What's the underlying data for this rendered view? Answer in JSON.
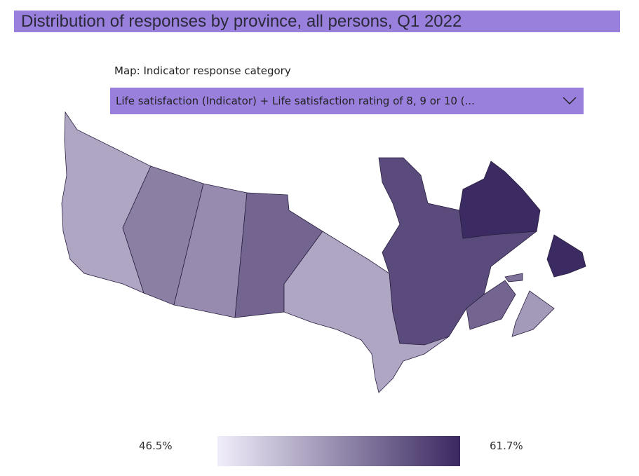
{
  "header": {
    "title": "Distribution of responses by province, all persons, Q1 2022"
  },
  "filter": {
    "label": "Map: Indicator response category",
    "selected": "Life satisfaction (Indicator) + Life satisfaction rating of 8, 9 or 10 (..."
  },
  "legend": {
    "min": {
      "value": 46.5,
      "label": "46.5%"
    },
    "max": {
      "value": 61.7,
      "label": "61.7%"
    },
    "colors": [
      "#f1eefb",
      "#3a2860"
    ]
  },
  "regions": [
    52,
    55,
    54,
    57,
    52,
    59,
    61.5,
    61.5,
    57,
    53,
    56
  ]
}
